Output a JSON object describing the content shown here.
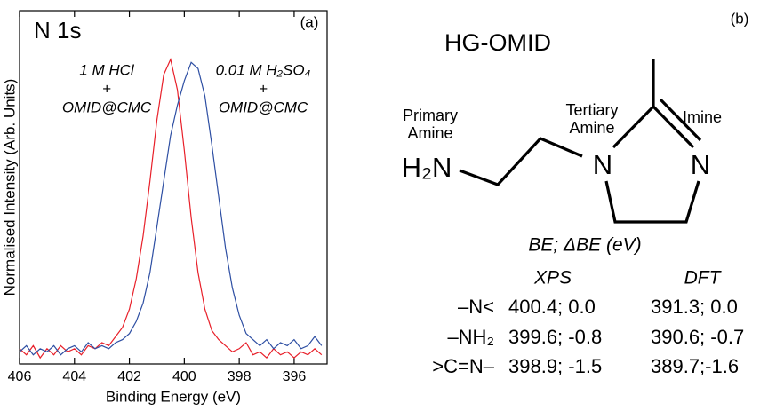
{
  "chart_data": {
    "type": "line",
    "title": "N 1s",
    "panel_label": "(a)",
    "x_label": "Binding Energy (eV)",
    "y_label": "Normalised Intensity (Arb. Units)",
    "xlim": [
      406,
      394.8
    ],
    "ylim": [
      0,
      1.16
    ],
    "xticks": [
      406,
      404,
      402,
      400,
      398,
      396
    ],
    "x": [
      406,
      405.75,
      405.5,
      405.25,
      405,
      404.75,
      404.5,
      404.25,
      404,
      403.75,
      403.5,
      403.25,
      403,
      402.75,
      402.5,
      402.25,
      402,
      401.75,
      401.5,
      401.25,
      401,
      400.75,
      400.5,
      400.25,
      400,
      399.75,
      399.5,
      399.25,
      399,
      398.75,
      398.5,
      398.25,
      398,
      397.75,
      397.5,
      397.25,
      397,
      396.75,
      396.5,
      396.25,
      396,
      395.75,
      395.5,
      395.25,
      395
    ],
    "series": [
      {
        "color": "#e8202a",
        "label_lines": [
          "1 M HCl",
          "+",
          "OMID@CMC"
        ],
        "values": [
          0.05,
          0.03,
          0.06,
          0.02,
          0.05,
          0.03,
          0.06,
          0.04,
          0.05,
          0.03,
          0.06,
          0.05,
          0.07,
          0.06,
          0.09,
          0.12,
          0.18,
          0.28,
          0.42,
          0.6,
          0.8,
          0.95,
          1.0,
          0.9,
          0.7,
          0.48,
          0.3,
          0.18,
          0.11,
          0.08,
          0.06,
          0.04,
          0.05,
          0.07,
          0.03,
          0.04,
          0.02,
          0.05,
          0.03,
          0.04,
          0.02,
          0.04,
          0.03,
          0.05,
          0.03
        ]
      },
      {
        "color": "#2e4fa3",
        "label_lines": [
          "0.01 M H₂SO₄",
          "+",
          "OMID@CMC"
        ],
        "values": [
          0.04,
          0.06,
          0.03,
          0.05,
          0.04,
          0.06,
          0.03,
          0.05,
          0.06,
          0.04,
          0.07,
          0.05,
          0.06,
          0.05,
          0.07,
          0.08,
          0.1,
          0.14,
          0.2,
          0.3,
          0.45,
          0.6,
          0.75,
          0.85,
          0.93,
          0.99,
          0.97,
          0.88,
          0.72,
          0.55,
          0.38,
          0.25,
          0.16,
          0.1,
          0.08,
          0.06,
          0.08,
          0.05,
          0.07,
          0.06,
          0.08,
          0.05,
          0.06,
          0.09,
          0.06
        ]
      }
    ]
  },
  "diagram": {
    "title": "HG-OMID",
    "panel_label": "(b)",
    "labels": {
      "primary": [
        "Primary",
        "Amine"
      ],
      "tertiary": [
        "Tertiary",
        "Amine"
      ],
      "imine": "Imine"
    },
    "atoms": {
      "h2n": "H₂N",
      "n1": "N",
      "n3": "N"
    },
    "table": {
      "caption": "BE; ΔBE (eV)",
      "columns": [
        "XPS",
        "DFT"
      ],
      "rows": [
        [
          "–N<",
          "400.4; 0.0",
          "391.3; 0.0"
        ],
        [
          "–NH₂",
          "399.6; -0.8",
          "390.6; -0.7"
        ],
        [
          ">C=N–",
          "398.9; -1.5",
          "389.7;-1.6"
        ]
      ]
    }
  }
}
